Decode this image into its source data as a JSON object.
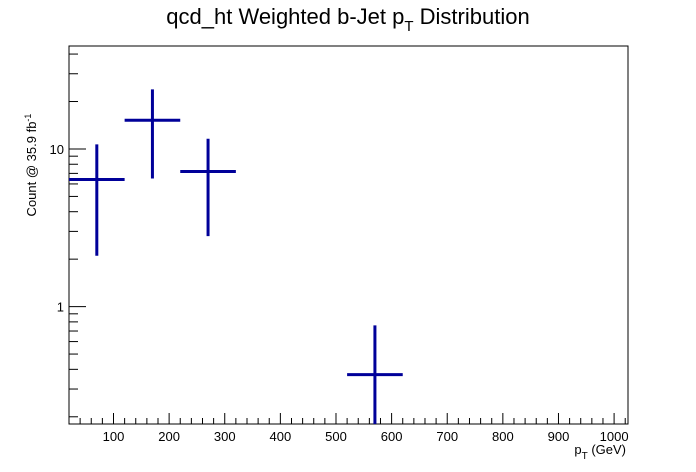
{
  "chart_data": {
    "type": "scatter",
    "title_main": "qcd_ht Weighted b-Jet p",
    "title_sub": "T",
    "title_tail": " Distribution",
    "xlabel_main": "p",
    "xlabel_sub": "T",
    "xlabel_tail": " (GeV)",
    "ylabel_main": "Count @ 35.9 fb",
    "ylabel_sup": "-1",
    "xlim": [
      20,
      1025
    ],
    "ylim": [
      0.18,
      45
    ],
    "log_y": true,
    "grid": false,
    "x_ticks": [
      "100",
      "200",
      "300",
      "400",
      "500",
      "600",
      "700",
      "800",
      "900",
      "1000"
    ],
    "y_tick_labels": [
      "1",
      "10"
    ],
    "series": [
      {
        "color": "#000099",
        "points": [
          {
            "x": 70,
            "xlow": 20,
            "xhigh": 120,
            "y": 6.4,
            "ylow": 2.1,
            "yhigh": 10.7
          },
          {
            "x": 170,
            "xlow": 120,
            "xhigh": 220,
            "y": 15.2,
            "ylow": 6.5,
            "yhigh": 23.9
          },
          {
            "x": 270,
            "xlow": 220,
            "xhigh": 320,
            "y": 7.2,
            "ylow": 2.8,
            "yhigh": 11.6
          },
          {
            "x": 570,
            "xlow": 520,
            "xhigh": 620,
            "y": 0.37,
            "ylow": 0.18,
            "yhigh": 0.76
          }
        ]
      }
    ]
  }
}
